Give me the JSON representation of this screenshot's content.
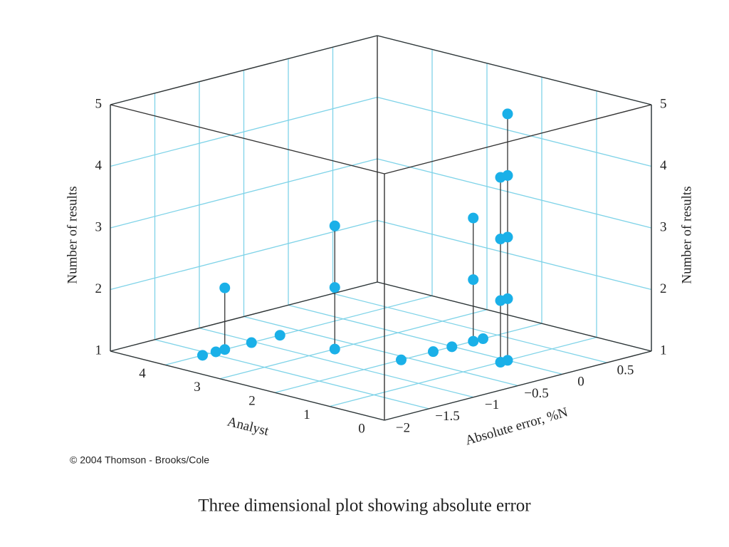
{
  "chart_data": {
    "type": "scatter3d",
    "caption": "Three dimensional plot showing absolute error",
    "credit": "© 2004 Thomson - Brooks/Cole",
    "xlabel": "Absolute error, %N",
    "ylabel": "Analyst",
    "zlabel": "Number of results",
    "color": "#1ab0e8",
    "grid_color": "#7fd3e8",
    "xlim": [
      -2,
      1
    ],
    "ylim": [
      0,
      5
    ],
    "zlim": [
      1,
      5
    ],
    "xticks": [
      {
        "value": -2,
        "label": "−2"
      },
      {
        "value": -1.5,
        "label": "−1.5"
      },
      {
        "value": -1,
        "label": "−1"
      },
      {
        "value": -0.5,
        "label": "−0.5"
      },
      0,
      0.5
    ],
    "yticks": [
      0,
      1,
      2,
      3,
      4
    ],
    "zticks": [
      1,
      2,
      3,
      4,
      5
    ],
    "x": [
      -1.58,
      -1.43,
      -1.33,
      -1.33,
      -1.03,
      -0.71,
      -0.71,
      -0.71,
      -0.71,
      -0.58,
      -0.22,
      -0.01,
      0.23,
      0.23,
      0.23,
      0.34,
      -0.08,
      -0.08,
      -0.08,
      -0.08,
      0,
      0,
      0,
      0,
      0
    ],
    "y": [
      4,
      4,
      4,
      4,
      4,
      4,
      3,
      3,
      3,
      2,
      2,
      2,
      2,
      2,
      2,
      2,
      1,
      1,
      1,
      1,
      1,
      1,
      1,
      1,
      1
    ],
    "z": [
      1,
      1,
      1,
      2,
      1,
      1,
      1,
      2,
      3,
      1,
      1,
      1,
      1,
      2,
      3,
      1,
      1,
      2,
      3,
      4,
      1,
      2,
      3,
      4,
      5
    ]
  }
}
